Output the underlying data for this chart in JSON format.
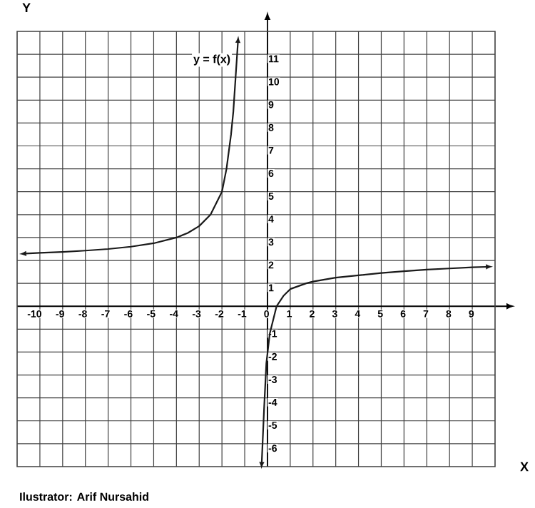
{
  "chart_data": {
    "type": "line",
    "xlabel": "X",
    "ylabel": "Y",
    "xlim": [
      -11,
      10
    ],
    "ylim": [
      -7,
      12
    ],
    "xticks": [
      -10,
      -9,
      -8,
      -7,
      -6,
      -5,
      -4,
      -3,
      -2,
      -1,
      0,
      1,
      2,
      3,
      4,
      5,
      6,
      7,
      8,
      9
    ],
    "yticks": [
      -6,
      -5,
      -4,
      -3,
      -2,
      -1,
      1,
      2,
      3,
      4,
      5,
      6,
      7,
      8,
      9,
      10,
      11
    ],
    "grid": true,
    "series": [
      {
        "name": "y = f(x)",
        "color": "#1a1a1a",
        "x": [
          -10.6,
          -10,
          -9,
          -8,
          -7,
          -6,
          -5,
          -4,
          -3.5,
          -3,
          -2.5,
          -2,
          -1.8,
          -1.6,
          -1.5,
          -1.4,
          -1.3
        ],
        "values": [
          2.3,
          2.33,
          2.37,
          2.43,
          2.5,
          2.6,
          2.75,
          3.0,
          3.2,
          3.5,
          4.0,
          5.0,
          6.0,
          7.5,
          8.5,
          10,
          11.5
        ]
      },
      {
        "color": "#1a1a1a",
        "x": [
          -0.25,
          -0.15,
          -0.05,
          0.1,
          0.4,
          0.7,
          1,
          1.7,
          2,
          3,
          4,
          5,
          6,
          7,
          8,
          9,
          9.6
        ],
        "values": [
          -6.8,
          -4.5,
          -2.5,
          -1.2,
          0,
          0.45,
          0.75,
          1.0,
          1.08,
          1.25,
          1.35,
          1.45,
          1.53,
          1.6,
          1.65,
          1.7,
          1.72
        ]
      }
    ],
    "annotations": [
      "Ilustrator: Arif Nursahid"
    ]
  }
}
